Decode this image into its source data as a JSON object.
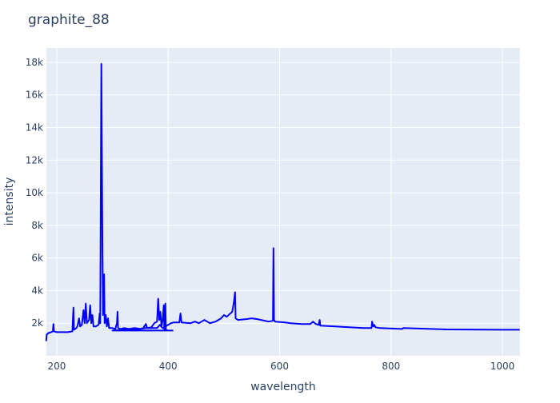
{
  "chart_data": {
    "type": "line",
    "title": "graphite_88",
    "xlabel": "wavelength",
    "ylabel": "intensity",
    "xlim": [
      181.4,
      1031.5
    ],
    "ylim": [
      0,
      18880
    ],
    "xticks": [
      200,
      400,
      600,
      800,
      1000
    ],
    "xtick_labels": [
      "200",
      "400",
      "600",
      "800",
      "1000"
    ],
    "yticks": [
      2000,
      4000,
      6000,
      8000,
      10000,
      12000,
      14000,
      16000,
      18000
    ],
    "ytick_labels": [
      "2k",
      "4k",
      "6k",
      "8k",
      "10k",
      "12k",
      "14k",
      "16k",
      "18k"
    ],
    "grid": true,
    "line_color": "#0000ff",
    "plot_bg": "#e5ecf6",
    "series": [
      {
        "x": [
          181,
          182,
          185,
          190,
          193,
          194,
          195,
          200,
          220,
          228,
          230,
          231,
          235,
          237,
          240,
          242,
          245,
          248,
          250,
          252,
          254,
          258,
          260,
          262,
          264,
          266,
          270,
          275,
          277,
          278,
          279,
          280,
          281,
          282,
          283,
          285,
          286,
          288,
          290,
          292,
          294,
          300,
          305,
          308,
          309,
          310,
          315,
          320,
          330,
          340,
          350,
          355,
          360,
          362,
          370,
          375,
          380,
          382,
          384,
          386,
          388,
          390,
          392,
          393,
          395,
          396,
          400,
          408,
          300,
          320,
          340,
          360,
          370,
          380,
          385,
          390,
          395,
          400,
          405,
          410,
          420,
          422,
          424,
          440,
          448,
          455,
          465,
          470,
          475,
          485,
          495,
          500,
          505,
          515,
          518,
          520,
          521,
          525,
          540,
          550,
          560,
          580,
          588,
          589,
          590,
          592,
          610,
          620,
          640,
          655,
          660,
          665,
          670,
          672,
          673,
          700,
          750,
          765,
          766,
          768,
          770,
          772,
          780,
          820,
          822,
          900,
          1000,
          1031
        ],
        "y": [
          900,
          1300,
          1400,
          1450,
          1500,
          1950,
          1500,
          1450,
          1450,
          1500,
          2950,
          1600,
          1700,
          1800,
          2300,
          1800,
          1900,
          2800,
          2000,
          3200,
          2000,
          2200,
          3100,
          2000,
          2500,
          1800,
          1800,
          1900,
          2600,
          2000,
          10000,
          17900,
          12000,
          6400,
          2500,
          5000,
          2000,
          2500,
          1800,
          2300,
          1700,
          1700,
          1650,
          2000,
          2700,
          1700,
          1650,
          1700,
          1650,
          1700,
          1650,
          1700,
          1950,
          1700,
          1750,
          2000,
          2100,
          3500,
          2200,
          2700,
          1800,
          2200,
          3100,
          1600,
          3200,
          1600,
          1550,
          1550,
          1550,
          1600,
          1600,
          1700,
          1700,
          1700,
          1900,
          1700,
          1800,
          1900,
          2000,
          2050,
          2050,
          2600,
          2050,
          2000,
          2100,
          2000,
          2200,
          2100,
          2000,
          2100,
          2300,
          2500,
          2400,
          2700,
          3300,
          3900,
          2300,
          2200,
          2250,
          2300,
          2250,
          2100,
          2150,
          6600,
          2200,
          2100,
          2050,
          2000,
          1950,
          1950,
          2100,
          1950,
          1900,
          2200,
          1850,
          1800,
          1700,
          1700,
          2100,
          1800,
          1900,
          1750,
          1700,
          1650,
          1700,
          1620,
          1600,
          1600
        ]
      }
    ]
  }
}
